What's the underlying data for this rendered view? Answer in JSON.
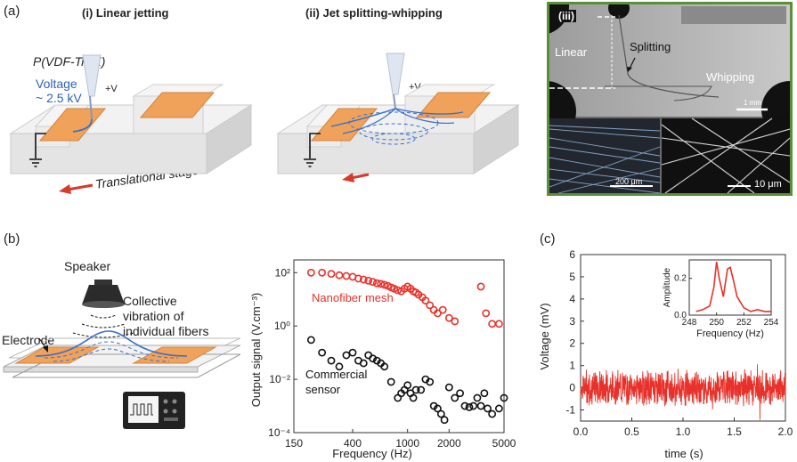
{
  "panel_a": {
    "letter": "(a)",
    "title_i": "(i) Linear jetting",
    "title_ii": "(ii) Jet splitting-whipping",
    "material": "P(VDF-TrFE)",
    "voltage_line1": "Voltage",
    "voltage_line2": "~ 2.5 kV",
    "plus_v": "+V",
    "stage_label": "Translational stage",
    "micro": {
      "tag": "(iii)",
      "linear": "Linear",
      "splitting": "Splitting",
      "whipping": "Whipping",
      "scale_1": "1 mm",
      "scale_2": "200 μm",
      "scale_3": "10 μm"
    }
  },
  "panel_b": {
    "letter": "(b)",
    "speaker": "Speaker",
    "collective_1": "Collective",
    "collective_2": "vibration of",
    "collective_3": "individual fibers",
    "electrode": "Electrode"
  },
  "panel_c": {
    "letter": "(c)"
  },
  "chart_data": [
    {
      "type": "scatter",
      "xlabel": "Frequency (Hz)",
      "ylabel": "Output signal (V.cm⁻³)",
      "x_scale": "log",
      "y_scale": "log",
      "xlim": [
        150,
        5000
      ],
      "ylim": [
        0.0001,
        300
      ],
      "x_ticks": [
        "150",
        "400",
        "1000",
        "2000",
        "5000"
      ],
      "y_ticks": [
        "10²",
        "10⁰",
        "10⁻²",
        "10⁻⁴"
      ],
      "series": [
        {
          "name": "Nanofiber mesh",
          "color": "#e8312a",
          "x": [
            200,
            240,
            280,
            320,
            360,
            400,
            440,
            480,
            520,
            560,
            600,
            640,
            680,
            720,
            760,
            800,
            850,
            900,
            950,
            1000,
            1050,
            1100,
            1150,
            1200,
            1280,
            1350,
            1450,
            1550,
            1650,
            1800,
            2000,
            2200,
            3400,
            3700,
            4100,
            4600
          ],
          "y": [
            100,
            100,
            90,
            80,
            75,
            70,
            60,
            55,
            50,
            45,
            40,
            38,
            35,
            32,
            28,
            25,
            22,
            20,
            25,
            30,
            25,
            20,
            18,
            15,
            12,
            9,
            6,
            4,
            3,
            4,
            2,
            1.5,
            30,
            3,
            1.2,
            1.2
          ]
        },
        {
          "name": "Commercial sensor",
          "color": "#111111",
          "x": [
            200,
            240,
            280,
            320,
            360,
            400,
            440,
            480,
            520,
            560,
            600,
            640,
            680,
            760,
            850,
            900,
            950,
            1000,
            1050,
            1100,
            1150,
            1250,
            1350,
            1450,
            1550,
            1650,
            1750,
            1850,
            2000,
            2200,
            2400,
            2600,
            2800,
            3000,
            3200,
            3400,
            3600,
            3800,
            4100,
            4600,
            5000
          ],
          "y": [
            0.3,
            0.1,
            0.05,
            0.03,
            0.08,
            0.1,
            0.05,
            0.04,
            0.08,
            0.06,
            0.05,
            0.04,
            0.03,
            0.008,
            0.002,
            0.003,
            0.004,
            0.006,
            0.003,
            0.002,
            0.004,
            0.004,
            0.01,
            0.008,
            0.001,
            0.0008,
            0.0005,
            0.0003,
            0.005,
            0.002,
            0.003,
            0.001,
            0.0009,
            0.001,
            0.002,
            0.001,
            0.003,
            0.0008,
            0.0005,
            0.0008,
            0.002
          ]
        }
      ]
    },
    {
      "type": "line",
      "xlabel": "time (s)",
      "ylabel": "Voltage (mV)",
      "xlim": [
        0,
        2.0
      ],
      "ylim": [
        -1.5,
        6
      ],
      "x_ticks": [
        "0.0",
        "0.5",
        "1.0",
        "1.5",
        "2.0"
      ],
      "y_ticks": [
        "6",
        "5",
        "4",
        "3",
        "2",
        "1",
        "0",
        "-1"
      ],
      "series": [
        {
          "color": "#e8312a"
        }
      ],
      "inset": {
        "type": "line",
        "xlabel": "Frequency (Hz)",
        "ylabel": "Amplitude",
        "xlim": [
          248,
          254
        ],
        "ylim": [
          0,
          0.3
        ],
        "x_ticks": [
          "248",
          "250",
          "252",
          "254"
        ],
        "y_ticks": [
          "0.2",
          "0.0"
        ],
        "x": [
          248.5,
          249,
          249.5,
          249.8,
          250,
          250.2,
          250.5,
          250.8,
          251,
          251.2,
          251.5,
          252,
          252.5,
          253,
          253.5,
          254
        ],
        "y": [
          0.02,
          0.03,
          0.05,
          0.15,
          0.29,
          0.2,
          0.1,
          0.25,
          0.26,
          0.2,
          0.1,
          0.04,
          0.02,
          0.03,
          0.02,
          0.02
        ]
      }
    }
  ]
}
